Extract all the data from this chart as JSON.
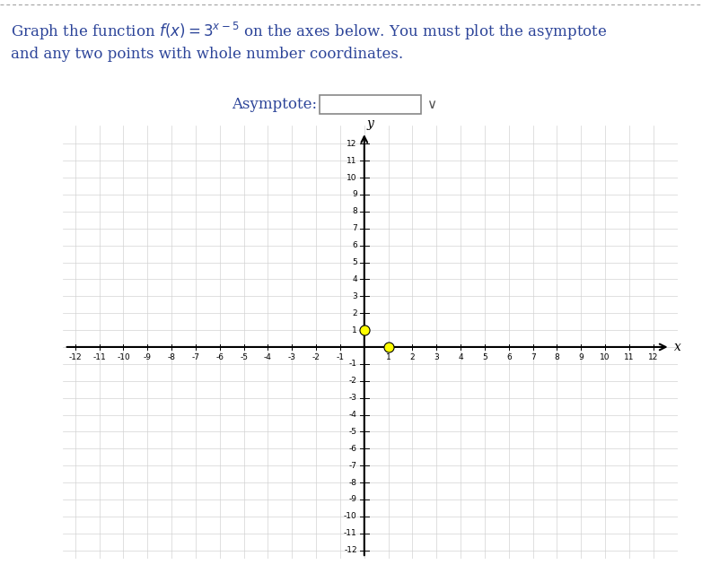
{
  "title_line1": "Graph the function $f(x) = 3^{x-5}$ on the axes below. You must plot the asymptote",
  "title_line2": "and any two points with whole number coordinates.",
  "asymptote_label": "Asymptote:",
  "xmin": -12,
  "xmax": 12,
  "ymin": -12,
  "ymax": 12,
  "grid_color": "#d3d3d3",
  "background_color": "#ffffff",
  "dot_color": "#ffff00",
  "dot_edge_color": "#000000",
  "dot_points": [
    [
      0,
      1
    ],
    [
      1,
      0
    ]
  ],
  "dot_size": 8,
  "top_dashed_color": "#999999",
  "text_color": "#2c4499",
  "tick_fontsize": 6.5
}
